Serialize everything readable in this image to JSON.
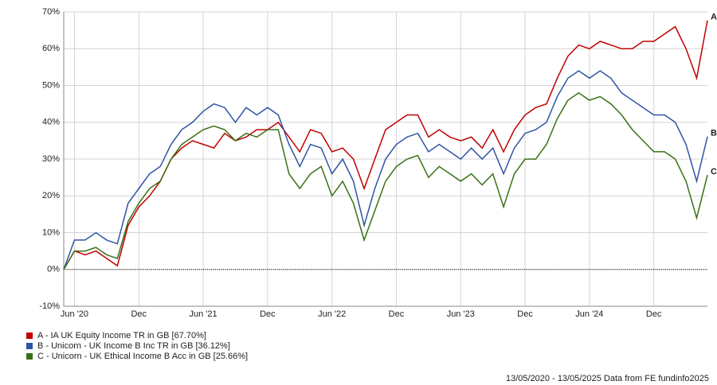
{
  "chart_data": {
    "type": "line",
    "categories": [
      "",
      "Jun '20",
      "",
      "",
      "",
      "",
      "",
      "Dec",
      "",
      "",
      "",
      "",
      "",
      "Jun '21",
      "",
      "",
      "",
      "",
      "",
      "Dec",
      "",
      "",
      "",
      "",
      "",
      "Jun '22",
      "",
      "",
      "",
      "",
      "",
      "Dec",
      "",
      "",
      "",
      "",
      "",
      "Jun '23",
      "",
      "",
      "",
      "",
      "",
      "Dec",
      "",
      "",
      "",
      "",
      "",
      "Jun '24",
      "",
      "",
      "",
      "",
      "",
      "Dec",
      "",
      "",
      "",
      "",
      ""
    ],
    "series": [
      {
        "name": "A - IA UK Equity Income TR in GB [67.70%]",
        "label": "A",
        "color": "#c00000",
        "values": [
          0,
          5,
          4,
          5,
          3,
          1,
          12,
          17,
          20,
          24,
          30,
          33,
          35,
          34,
          33,
          37,
          35,
          36,
          38,
          38,
          40,
          36,
          32,
          38,
          37,
          32,
          33,
          30,
          22,
          30,
          38,
          40,
          42,
          42,
          36,
          38,
          36,
          35,
          36,
          33,
          38,
          32,
          38,
          42,
          44,
          45,
          52,
          58,
          61,
          60,
          62,
          61,
          60,
          60,
          62,
          62,
          64,
          66,
          60,
          52,
          67.7
        ]
      },
      {
        "name": "B - Unicorn - UK Income B Inc TR in GB [36.12%]",
        "label": "B",
        "color": "#2f55a4",
        "values": [
          0,
          8,
          8,
          10,
          8,
          7,
          18,
          22,
          26,
          28,
          34,
          38,
          40,
          43,
          45,
          44,
          40,
          44,
          42,
          44,
          42,
          34,
          28,
          34,
          33,
          26,
          30,
          24,
          12,
          22,
          30,
          34,
          36,
          37,
          32,
          34,
          32,
          30,
          33,
          30,
          33,
          26,
          33,
          37,
          38,
          40,
          47,
          52,
          54,
          52,
          54,
          52,
          48,
          46,
          44,
          42,
          42,
          40,
          34,
          24,
          36.12
        ]
      },
      {
        "name": "C - Unicorn - UK Ethical Income B Acc in GB [25.66%]",
        "label": "C",
        "color": "#3a7017",
        "values": [
          0,
          5,
          5,
          6,
          4,
          3,
          13,
          18,
          22,
          24,
          30,
          34,
          36,
          38,
          39,
          38,
          35,
          37,
          36,
          38,
          38,
          26,
          22,
          26,
          28,
          20,
          24,
          18,
          8,
          16,
          24,
          28,
          30,
          31,
          25,
          28,
          26,
          24,
          26,
          23,
          26,
          17,
          26,
          30,
          30,
          34,
          41,
          46,
          48,
          46,
          47,
          45,
          42,
          38,
          35,
          32,
          32,
          30,
          24,
          14,
          25.66
        ]
      }
    ],
    "ylim": [
      -10,
      70
    ],
    "yticks": [
      {
        "value": -10,
        "label": "-10%"
      },
      {
        "value": 0,
        "label": "0%"
      },
      {
        "value": 10,
        "label": "10%"
      },
      {
        "value": 20,
        "label": "20%"
      },
      {
        "value": 30,
        "label": "30%"
      },
      {
        "value": 40,
        "label": "40%"
      },
      {
        "value": 50,
        "label": "50%"
      },
      {
        "value": 60,
        "label": "60%"
      },
      {
        "value": 70,
        "label": "70%"
      }
    ],
    "grid": true,
    "zero_line": true,
    "footer": "13/05/2020 - 13/05/2025 Data from FE fundinfo2025"
  }
}
